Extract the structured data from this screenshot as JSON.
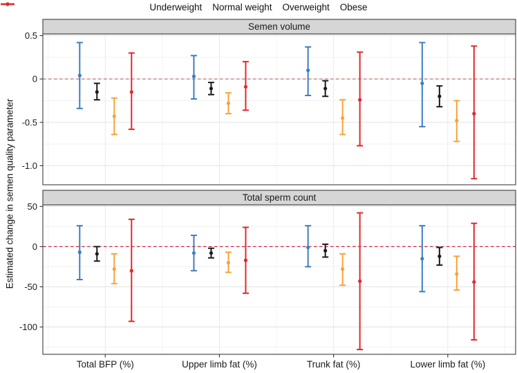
{
  "legend": {
    "items": [
      {
        "label": "Underweight",
        "color": "#3c7dbf"
      },
      {
        "label": "Normal weight",
        "color": "#1a1a1a"
      },
      {
        "label": "Overweight",
        "color": "#f5a33b"
      },
      {
        "label": "Obese",
        "color": "#e3262a"
      }
    ]
  },
  "chart_data": {
    "type": "pointrange",
    "ylabel": "Estimated change in semen quality parameter",
    "categories": [
      "Total BFP (%)",
      "Upper limb fat (%)",
      "Trunk fat (%)",
      "Lower limb fat (%)"
    ],
    "groups": [
      "Underweight",
      "Normal weight",
      "Overweight",
      "Obese"
    ],
    "legend_position": "top",
    "grid": true,
    "panels": [
      {
        "title": "Semen volume",
        "ylim": [
          -1.22,
          0.52
        ],
        "yticks": [
          0.5,
          0,
          -0.5,
          -1.0
        ],
        "ytick_labels": [
          "0.5",
          "0",
          "-0.5",
          "-1.0"
        ],
        "ref_line": 0,
        "ref_color": "#c5756a",
        "series": [
          {
            "name": "Underweight",
            "color": "#3c7dbf",
            "est": [
              0.04,
              0.03,
              0.1,
              -0.05
            ],
            "lo": [
              -0.34,
              -0.23,
              -0.19,
              -0.55
            ],
            "hi": [
              0.42,
              0.27,
              0.37,
              0.42
            ]
          },
          {
            "name": "Normal weight",
            "color": "#1a1a1a",
            "est": [
              -0.15,
              -0.11,
              -0.11,
              -0.2
            ],
            "lo": [
              -0.24,
              -0.18,
              -0.2,
              -0.32
            ],
            "hi": [
              -0.05,
              -0.04,
              -0.02,
              -0.08
            ]
          },
          {
            "name": "Overweight",
            "color": "#f5a33b",
            "est": [
              -0.43,
              -0.28,
              -0.45,
              -0.48
            ],
            "lo": [
              -0.64,
              -0.4,
              -0.64,
              -0.72
            ],
            "hi": [
              -0.22,
              -0.16,
              -0.24,
              -0.25
            ]
          },
          {
            "name": "Obese",
            "color": "#e3262a",
            "est": [
              -0.15,
              -0.09,
              -0.24,
              -0.4
            ],
            "lo": [
              -0.58,
              -0.36,
              -0.77,
              -1.15
            ],
            "hi": [
              0.3,
              0.2,
              0.31,
              0.38
            ]
          }
        ]
      },
      {
        "title": "Total sperm count",
        "ylim": [
          -134,
          52
        ],
        "yticks": [
          50,
          0,
          -50,
          -100
        ],
        "ytick_labels": [
          "50",
          "0",
          "-50",
          "-100"
        ],
        "ref_line": 0,
        "ref_color": "#c42a42",
        "series": [
          {
            "name": "Underweight",
            "color": "#3c7dbf",
            "est": [
              -7,
              -8,
              -1,
              -15
            ],
            "lo": [
              -41,
              -30,
              -25,
              -56
            ],
            "hi": [
              26,
              14,
              26,
              26
            ]
          },
          {
            "name": "Normal weight",
            "color": "#1a1a1a",
            "est": [
              -9,
              -8,
              -5,
              -12
            ],
            "lo": [
              -18,
              -14,
              -13,
              -23
            ],
            "hi": [
              0,
              -2,
              3,
              -1
            ]
          },
          {
            "name": "Overweight",
            "color": "#f5a33b",
            "est": [
              -28,
              -20,
              -28,
              -34
            ],
            "lo": [
              -46,
              -32,
              -48,
              -54
            ],
            "hi": [
              -9,
              -7,
              -9,
              -12
            ]
          },
          {
            "name": "Obese",
            "color": "#e3262a",
            "est": [
              -30,
              -17,
              -43,
              -44
            ],
            "lo": [
              -93,
              -58,
              -128,
              -116
            ],
            "hi": [
              34,
              24,
              42,
              29
            ]
          }
        ]
      }
    ]
  }
}
